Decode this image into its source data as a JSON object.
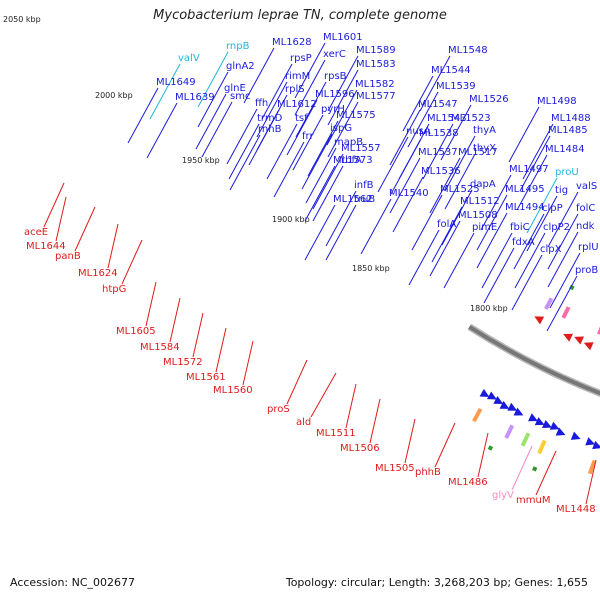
{
  "title": "Mycobacterium leprae TN, complete genome",
  "footer": {
    "accession": "Accession: NC_002677",
    "summary": "Topology: circular; Length: 3,268,203 bp; Genes: 1,655"
  },
  "colors": {
    "forward": "#1a1adb",
    "reverse": "#e01b1b",
    "rna_forward": "#20b8d8",
    "rna_reverse": "#f28cc4",
    "backbone": "#777777"
  },
  "ticks": [
    "2050 kbp",
    "2000 kbp",
    "1950 kbp",
    "1900 kbp",
    "1850 kbp",
    "1800 kbp"
  ],
  "forward_labels": [
    "valV",
    "rnpB",
    "ML1628",
    "rpsP",
    "ML1601",
    "ML1589",
    "ML1548",
    "ML1649",
    "glnA2",
    "rimM",
    "xerC",
    "ML1583",
    "ML1544",
    "ML1639",
    "glnE",
    "rplS",
    "rpsB",
    "ML1582",
    "ML1539",
    "smc",
    "ffh",
    "ML1612",
    "ML1596",
    "ML1577",
    "ML1526",
    "trmD",
    "tsf",
    "pyrH",
    "ML1575",
    "ML1547",
    "ML1523",
    "ML1498",
    "rnhB",
    "frr",
    "ispG",
    "nusA",
    "ML1543",
    "thyA",
    "ML1488",
    "mapB",
    "ML1557",
    "ML1538",
    "thyX",
    "ML1485",
    "ML1573",
    "rbfA",
    "ML1537",
    "ML1517",
    "ML1484",
    "infB",
    "ML1536",
    "dapA",
    "ML1497",
    "proU",
    "truB",
    "ML1540",
    "ML1525",
    "ML1512",
    "ML1495",
    "tig",
    "valS",
    "ML1562",
    "folA",
    "ML1508",
    "ML1494",
    "clpP",
    "folC",
    "pimE",
    "fbiC",
    "clpP2",
    "ndk",
    "fdxA",
    "clpX",
    "rplU",
    "proB"
  ],
  "reverse_labels": [
    "aceE",
    "ML1644",
    "panB",
    "ML1624",
    "htpG",
    "ML1605",
    "ML1584",
    "ML1572",
    "ML1561",
    "ML1560",
    "proS",
    "ald",
    "ML1511",
    "ML1506",
    "ML1505",
    "phhB",
    "ML1486",
    "glyV",
    "mmuM",
    "ML1448"
  ]
}
